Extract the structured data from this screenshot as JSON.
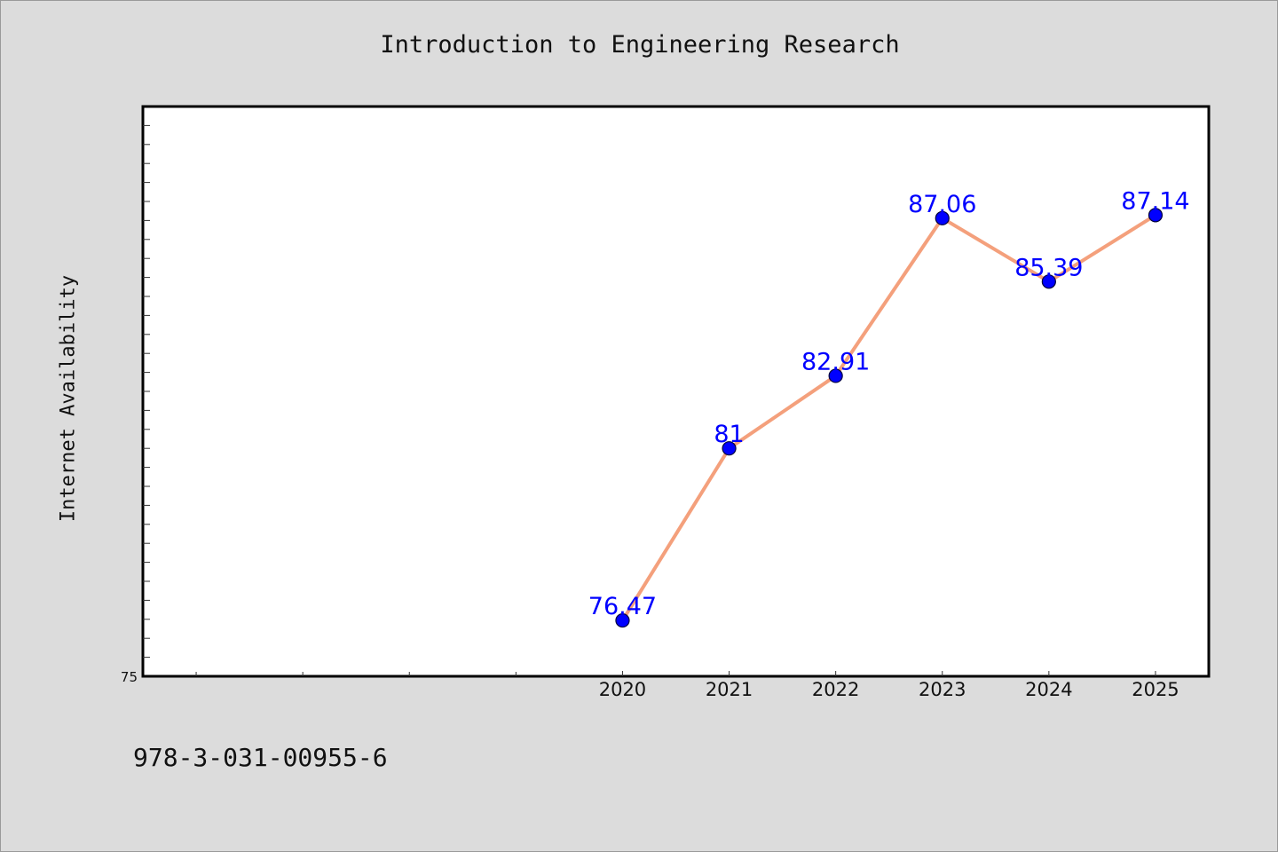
{
  "chart_data": {
    "type": "line",
    "title": "Introduction to Engineering Research",
    "xlabel": "",
    "ylabel": "Internet Availability",
    "categories": [
      "2020",
      "2021",
      "2022",
      "2023",
      "2024",
      "2025"
    ],
    "series": [
      {
        "values": [
          76.47,
          81,
          82.91,
          87.06,
          85.39,
          87.14
        ],
        "labels": [
          "76.47",
          "81",
          "82.91",
          "87.06",
          "85.39",
          "87.14"
        ]
      }
    ],
    "ytick_labels": [
      "75"
    ],
    "ylim": [
      75,
      90
    ],
    "xlim": [
      2015.5,
      2025.5
    ],
    "grid": false,
    "line_color": "#f4a07c",
    "marker_color": "#0000ff",
    "label_color": "#0000ff"
  },
  "footer": {
    "isbn": "978-3-031-00955-6"
  }
}
